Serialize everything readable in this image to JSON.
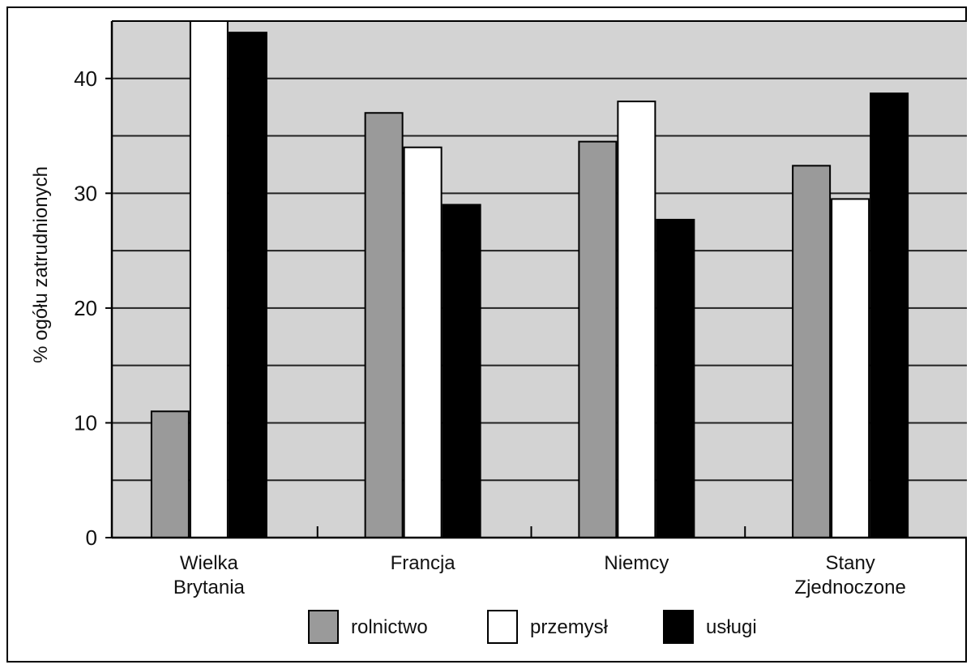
{
  "chart_data": {
    "type": "bar",
    "categories": [
      [
        "Wielka",
        "Brytania"
      ],
      [
        "Francja"
      ],
      [
        "Niemcy"
      ],
      [
        "Stany",
        "Zjednoczone"
      ]
    ],
    "series": [
      {
        "name": "rolnictwo",
        "color": "#9a9a9a",
        "values": [
          11,
          37,
          34.5,
          32.4
        ]
      },
      {
        "name": "przemysł",
        "color": "#ffffff",
        "values": [
          45,
          34,
          38,
          29.5
        ]
      },
      {
        "name": "usługi",
        "color": "#000000",
        "values": [
          44,
          29,
          27.7,
          38.7
        ]
      }
    ],
    "ylabel": "% ogółu zatrudnionych",
    "xlabel": "",
    "ylim": [
      0,
      45
    ],
    "yticks": [
      0,
      10,
      20,
      30,
      40
    ],
    "minor_step": 5,
    "grid": true,
    "plot_background": "#d3d3d3",
    "legend_position": "bottom"
  }
}
